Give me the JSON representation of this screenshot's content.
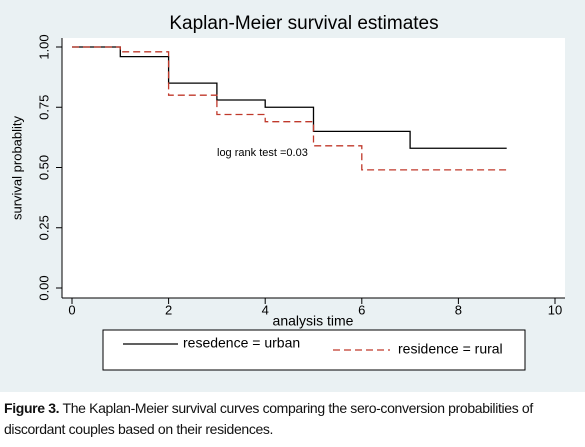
{
  "chart_data": {
    "type": "line",
    "step": "post",
    "title": "Kaplan-Meier survival estimates",
    "x_label": "analysis time",
    "y_label": "survival probablity",
    "annotation": "log rank test =0.03",
    "series": [
      {
        "name": "resedence = urban",
        "color": "#000000",
        "dash": false,
        "x": [
          0,
          1,
          2,
          3,
          4,
          5,
          7,
          9
        ],
        "values": [
          1,
          0.96,
          0.85,
          0.78,
          0.75,
          0.65,
          0.58,
          0.58
        ]
      },
      {
        "name": "residence = rural",
        "color": "#c0392b",
        "dash": true,
        "x": [
          0,
          1,
          2,
          3,
          4,
          5,
          6,
          9
        ],
        "values": [
          1,
          0.98,
          0.8,
          0.72,
          0.69,
          0.59,
          0.49,
          0.49
        ]
      }
    ],
    "xlim": [
      0,
      10
    ],
    "xticks": [
      0,
      2,
      4,
      6,
      8,
      10
    ],
    "ylim": [
      0,
      1
    ],
    "yticks": [
      {
        "value": 0,
        "label": "0.00"
      },
      0.25,
      {
        "value": 0.5,
        "label": "0.50"
      },
      0.75,
      {
        "value": 1,
        "label": "1.00"
      }
    ],
    "grid": false
  },
  "caption": {
    "label": "Figure 3.",
    "text": "The Kaplan-Meier survival curves comparing the sero-conversion probabilities of discordant couples based on their residences."
  }
}
